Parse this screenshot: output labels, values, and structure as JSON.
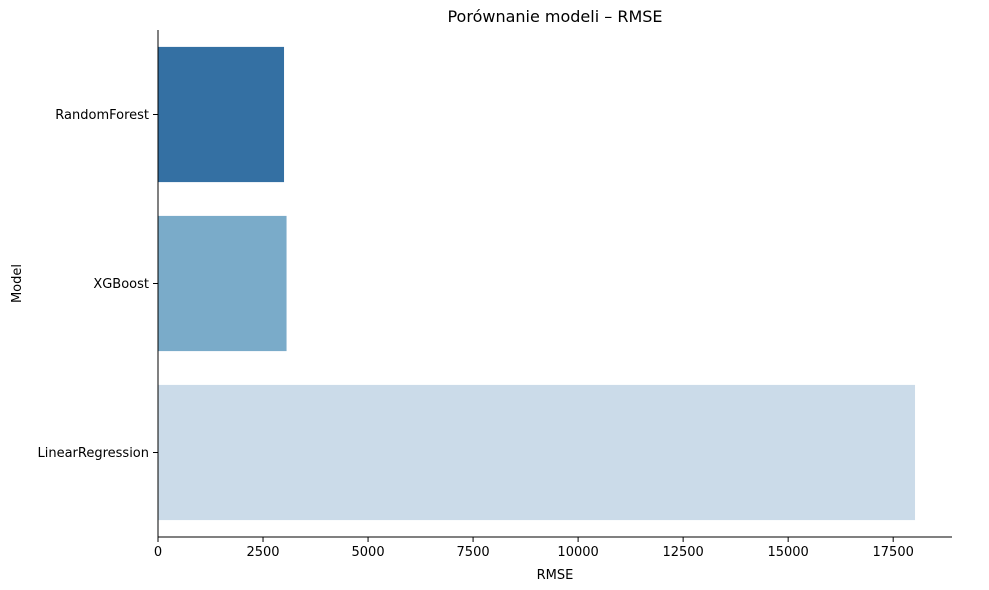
{
  "chart_data": {
    "type": "bar",
    "orientation": "horizontal",
    "title": "Porównanie modeli – RMSE",
    "xlabel": "RMSE",
    "ylabel": "Model",
    "categories": [
      "RandomForest",
      "XGBoost",
      "LinearRegression"
    ],
    "values": [
      3000,
      3060,
      18020
    ],
    "xlim": [
      0,
      18900
    ],
    "xticks": [
      0,
      2500,
      5000,
      7500,
      10000,
      12500,
      15000,
      17500
    ],
    "xtick_labels": [
      "0",
      "2500",
      "5000",
      "7500",
      "10000",
      "12500",
      "15000",
      "17500"
    ],
    "bar_colors": [
      "#3470a3",
      "#7aabc9",
      "#cbdbe9"
    ],
    "grid": false,
    "legend": "none"
  }
}
